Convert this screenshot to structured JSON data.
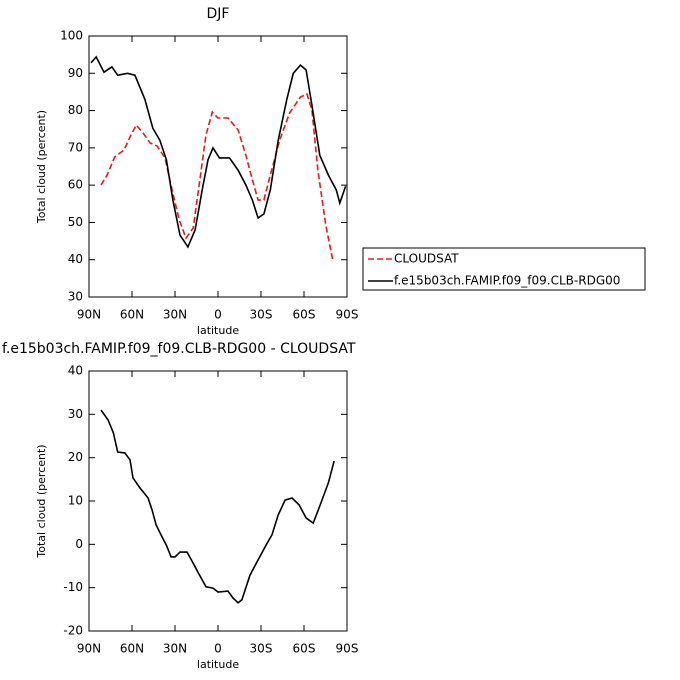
{
  "chart_data": [
    {
      "type": "line",
      "title": "DJF",
      "xlabel": "latitude",
      "ylabel": "Total cloud (percent)",
      "xlim": [
        90,
        -90
      ],
      "xticks": [
        {
          "value": 90,
          "label": "90N"
        },
        {
          "value": 60,
          "label": "60N"
        },
        {
          "value": 30,
          "label": "30N"
        },
        0,
        {
          "value": -30,
          "label": "30S"
        },
        {
          "value": -60,
          "label": "60S"
        },
        {
          "value": -90,
          "label": "90S"
        }
      ],
      "ylim": [
        30,
        100
      ],
      "yticks": [
        30,
        40,
        50,
        60,
        70,
        80,
        90,
        100
      ],
      "legend": "right",
      "series": [
        {
          "name": "CLOUDSAT",
          "color": "#e41a1c",
          "dash": true,
          "x": [
            81.6,
            77.4,
            72,
            65.6,
            60.7,
            57,
            52.3,
            47.4,
            42.5,
            37,
            32,
            27,
            22.3,
            17.3,
            12.5,
            8.4,
            4,
            0,
            -7,
            -14,
            -19.5,
            -24,
            -28,
            -32,
            -36.5,
            -43,
            -50,
            -57.5,
            -62,
            -65.5,
            -69.7,
            -75.2,
            -80
          ],
          "values": [
            60,
            62.7,
            67.6,
            69.4,
            73.5,
            76.1,
            74,
            71.3,
            70.5,
            67.3,
            58.7,
            50.6,
            45.8,
            48.5,
            61.9,
            73.5,
            79.6,
            78,
            78,
            74.8,
            68,
            61.4,
            56,
            56,
            62.7,
            72,
            79.4,
            83.6,
            84.5,
            80.2,
            64,
            49.2,
            40
          ]
        },
        {
          "name": "f.e15b03ch.FAMIP.f09_f09.CLB-RDG00",
          "color": "#000000",
          "dash": false,
          "x": [
            88.6,
            85,
            79.5,
            74,
            70,
            63,
            58,
            51,
            45.5,
            40.5,
            36,
            31.5,
            26.5,
            21,
            16,
            11,
            7,
            3.5,
            -1,
            -8,
            -14,
            -19.5,
            -24,
            -28,
            -32,
            -36.5,
            -42,
            -48,
            -52.5,
            -57.5,
            -61.5,
            -65.5,
            -71,
            -77,
            -82.5,
            -85,
            -89
          ],
          "values": [
            92.8,
            94.4,
            90.3,
            91.7,
            89.5,
            90,
            89.5,
            83,
            75.3,
            72,
            66.8,
            56,
            46.6,
            43.4,
            48,
            58.7,
            66.8,
            70,
            67.3,
            67.3,
            64,
            60,
            56,
            51.2,
            52.3,
            58.7,
            72,
            83,
            90,
            92.2,
            90.9,
            81.5,
            68,
            62.7,
            58.7,
            55.2,
            59.7
          ]
        }
      ]
    },
    {
      "type": "line",
      "title": "f.e15b03ch.FAMIP.f09_f09.CLB-RDG00 - CLOUDSAT",
      "xlabel": "latitude",
      "ylabel": "Total cloud (percent)",
      "xlim": [
        90,
        -90
      ],
      "xticks": [
        {
          "value": 90,
          "label": "90N"
        },
        {
          "value": 60,
          "label": "60N"
        },
        {
          "value": 30,
          "label": "30N"
        },
        0,
        {
          "value": -30,
          "label": "30S"
        },
        {
          "value": -60,
          "label": "60S"
        },
        {
          "value": -90,
          "label": "90S"
        }
      ],
      "ylim": [
        -20,
        40
      ],
      "yticks": [
        -20,
        -10,
        0,
        10,
        20,
        30,
        40
      ],
      "series": [
        {
          "color": "#000000",
          "dash": false,
          "x": [
            81.6,
            76.7,
            73,
            70,
            65,
            61.4,
            59.3,
            54.4,
            48.8,
            46,
            43.2,
            39,
            36,
            32.7,
            30,
            26.5,
            21.6,
            17.4,
            14,
            8.4,
            3.5,
            0,
            -7,
            -10.5,
            -14,
            -16.7,
            -22.3,
            -28,
            -33.5,
            -37.7,
            -42,
            -46.8,
            -51.7,
            -56.6,
            -61.5,
            -66.4,
            -71.3,
            -77,
            -81
          ],
          "values": [
            31,
            28.7,
            25.7,
            21.3,
            21.1,
            19.5,
            15.3,
            13,
            10.7,
            7.9,
            4.5,
            1.7,
            -0.2,
            -2.9,
            -2.9,
            -1.8,
            -1.8,
            -4.3,
            -6.4,
            -9.8,
            -10.1,
            -11,
            -10.8,
            -12.4,
            -13.5,
            -12.8,
            -7.1,
            -3.6,
            -0.2,
            2.2,
            6.8,
            10.2,
            10.7,
            9.1,
            6.1,
            4.9,
            9.1,
            14.2,
            19.2
          ]
        }
      ]
    }
  ]
}
